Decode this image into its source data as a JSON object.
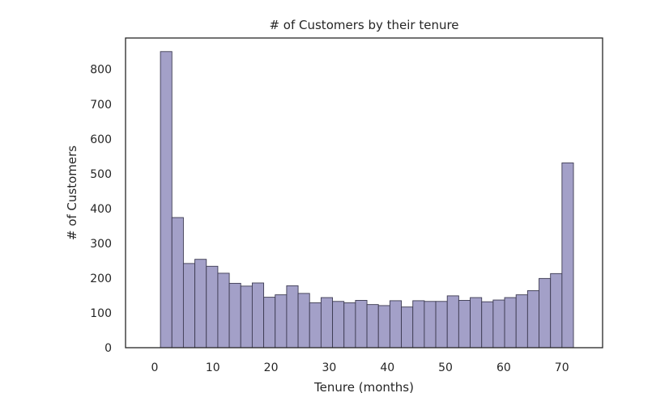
{
  "chart_data": {
    "type": "bar",
    "title": "# of Customers by their tenure",
    "xlabel": "Tenure (months)",
    "ylabel": "# of Customers",
    "xlim": [
      -5,
      77
    ],
    "ylim": [
      0,
      890
    ],
    "xticks": [
      0,
      10,
      20,
      30,
      40,
      50,
      60,
      70
    ],
    "yticks": [
      0,
      100,
      200,
      300,
      400,
      500,
      600,
      700,
      800
    ],
    "bin_start": 1,
    "bin_width": 1.972,
    "values": [
      851,
      374,
      242,
      254,
      234,
      214,
      185,
      177,
      186,
      145,
      152,
      178,
      156,
      129,
      144,
      133,
      129,
      136,
      124,
      121,
      135,
      117,
      135,
      133,
      133,
      149,
      136,
      144,
      132,
      137,
      144,
      152,
      164,
      199,
      213,
      531
    ],
    "bar_color": "#a3a0c8",
    "edge_color": "#3d3b52",
    "grid": false,
    "legend": "none"
  }
}
